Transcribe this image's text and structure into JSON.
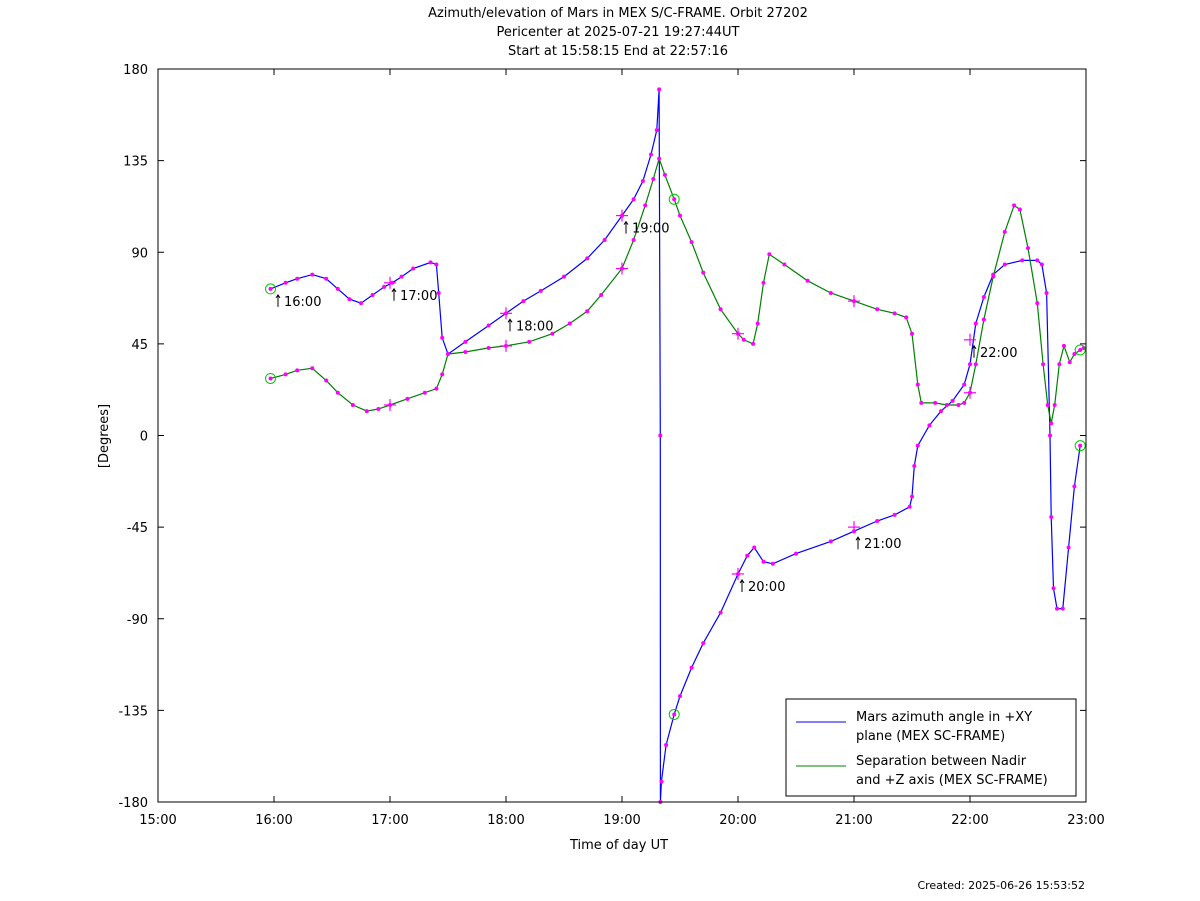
{
  "chart_data": {
    "type": "line",
    "title_lines": [
      "Azimuth/elevation of Mars in MEX S/C-FRAME.  Orbit 27202",
      "Pericenter at 2025-07-21 19:27:44UT",
      "Start at 15:58:15 End at 22:57:16"
    ],
    "xlabel": "Time of day UT",
    "ylabel": "[Degrees]",
    "created": "Created: 2025-06-26 15:53:52",
    "x_unit": "hours of day UT",
    "xlim": [
      15.0,
      23.0
    ],
    "ylim": [
      -180,
      180
    ],
    "x_ticks": [
      {
        "v": 15,
        "label": "15:00"
      },
      {
        "v": 16,
        "label": "16:00"
      },
      {
        "v": 17,
        "label": "17:00"
      },
      {
        "v": 18,
        "label": "18:00"
      },
      {
        "v": 19,
        "label": "19:00"
      },
      {
        "v": 20,
        "label": "20:00"
      },
      {
        "v": 21,
        "label": "21:00"
      },
      {
        "v": 22,
        "label": "22:00"
      },
      {
        "v": 23,
        "label": "23:00"
      }
    ],
    "y_ticks": [
      {
        "v": 180,
        "label": "180"
      },
      {
        "v": 135,
        "label": "135"
      },
      {
        "v": 90,
        "label": "90"
      },
      {
        "v": 45,
        "label": "45"
      },
      {
        "v": 0,
        "label": "0"
      },
      {
        "v": -45,
        "label": "-45"
      },
      {
        "v": -90,
        "label": "-90"
      },
      {
        "v": -135,
        "label": "-135"
      },
      {
        "v": -180,
        "label": "-180"
      }
    ],
    "grid": false,
    "legend_position": "bottom-right",
    "series": [
      {
        "name": "Mars azimuth angle in +XY plane (MEX SC-FRAME)",
        "legend_lines": [
          "Mars azimuth angle in +XY",
          "plane (MEX SC-FRAME)"
        ],
        "color": "#0000ff",
        "points": [
          [
            15.97,
            72
          ],
          [
            16.1,
            75
          ],
          [
            16.2,
            77
          ],
          [
            16.33,
            79
          ],
          [
            16.45,
            77
          ],
          [
            16.55,
            72
          ],
          [
            16.65,
            67
          ],
          [
            16.75,
            65
          ],
          [
            16.85,
            69
          ],
          [
            16.95,
            73
          ],
          [
            17.02,
            75
          ],
          [
            17.1,
            78
          ],
          [
            17.2,
            82
          ],
          [
            17.35,
            85
          ],
          [
            17.4,
            84
          ],
          [
            17.42,
            70
          ],
          [
            17.45,
            48
          ],
          [
            17.5,
            40
          ],
          [
            17.65,
            46
          ],
          [
            17.85,
            54
          ],
          [
            18.0,
            60
          ],
          [
            18.15,
            66
          ],
          [
            18.3,
            71
          ],
          [
            18.5,
            78
          ],
          [
            18.7,
            87
          ],
          [
            18.85,
            96
          ],
          [
            19.0,
            108
          ],
          [
            19.1,
            116
          ],
          [
            19.18,
            125
          ],
          [
            19.25,
            138
          ],
          [
            19.3,
            150
          ],
          [
            19.32,
            170
          ],
          [
            19.33,
            0
          ],
          [
            19.331,
            -180
          ],
          [
            19.34,
            -170
          ],
          [
            19.38,
            -152
          ],
          [
            19.45,
            -137
          ],
          [
            19.5,
            -128
          ],
          [
            19.6,
            -114
          ],
          [
            19.7,
            -102
          ],
          [
            19.85,
            -87
          ],
          [
            20.0,
            -68
          ],
          [
            20.08,
            -59
          ],
          [
            20.14,
            -55
          ],
          [
            20.22,
            -62
          ],
          [
            20.3,
            -63
          ],
          [
            20.5,
            -58
          ],
          [
            20.8,
            -52
          ],
          [
            21.0,
            -47
          ],
          [
            21.2,
            -42
          ],
          [
            21.35,
            -39
          ],
          [
            21.48,
            -35
          ],
          [
            21.5,
            -30
          ],
          [
            21.52,
            -15
          ],
          [
            21.55,
            -5
          ],
          [
            21.65,
            5
          ],
          [
            21.75,
            12
          ],
          [
            21.85,
            17
          ],
          [
            21.95,
            25
          ],
          [
            22.0,
            35
          ],
          [
            22.05,
            55
          ],
          [
            22.12,
            68
          ],
          [
            22.2,
            79
          ],
          [
            22.3,
            84
          ],
          [
            22.45,
            86
          ],
          [
            22.58,
            86
          ],
          [
            22.62,
            84
          ],
          [
            22.66,
            70
          ],
          [
            22.69,
            0
          ],
          [
            22.7,
            -40
          ],
          [
            22.72,
            -75
          ],
          [
            22.75,
            -85
          ],
          [
            22.8,
            -85
          ],
          [
            22.85,
            -55
          ],
          [
            22.9,
            -25
          ],
          [
            22.95,
            -5
          ]
        ],
        "star_markers": [
          [
            17.0,
            75
          ],
          [
            18.0,
            60
          ],
          [
            19.0,
            108
          ],
          [
            20.0,
            -68
          ],
          [
            21.0,
            -45
          ],
          [
            22.0,
            47
          ]
        ],
        "circle_markers": [
          [
            15.97,
            72
          ],
          [
            19.45,
            -137
          ],
          [
            22.95,
            -5
          ]
        ],
        "hour_labels": [
          {
            "x": 16.0,
            "y": 72,
            "label": "16:00"
          },
          {
            "x": 17.0,
            "y": 75,
            "label": "17:00"
          },
          {
            "x": 18.0,
            "y": 60,
            "label": "18:00"
          },
          {
            "x": 19.0,
            "y": 108,
            "label": "19:00"
          },
          {
            "x": 20.0,
            "y": -68,
            "label": "20:00"
          },
          {
            "x": 21.0,
            "y": -47,
            "label": "21:00"
          },
          {
            "x": 22.0,
            "y": 47,
            "label": "22:00"
          }
        ]
      },
      {
        "name": "Separation between Nadir and +Z axis (MEX SC-FRAME)",
        "legend_lines": [
          "Separation between Nadir",
          "and +Z axis (MEX SC-FRAME)"
        ],
        "color": "#008000",
        "points": [
          [
            15.97,
            28
          ],
          [
            16.1,
            30
          ],
          [
            16.2,
            32
          ],
          [
            16.33,
            33
          ],
          [
            16.45,
            27
          ],
          [
            16.55,
            21
          ],
          [
            16.68,
            15
          ],
          [
            16.8,
            12
          ],
          [
            16.9,
            13
          ],
          [
            17.0,
            15
          ],
          [
            17.15,
            18
          ],
          [
            17.3,
            21
          ],
          [
            17.4,
            23
          ],
          [
            17.45,
            30
          ],
          [
            17.5,
            40
          ],
          [
            17.65,
            41
          ],
          [
            17.85,
            43
          ],
          [
            18.0,
            44
          ],
          [
            18.2,
            46
          ],
          [
            18.4,
            50
          ],
          [
            18.55,
            55
          ],
          [
            18.7,
            61
          ],
          [
            18.82,
            69
          ],
          [
            19.0,
            82
          ],
          [
            19.1,
            96
          ],
          [
            19.2,
            113
          ],
          [
            19.27,
            126
          ],
          [
            19.32,
            136
          ],
          [
            19.37,
            128
          ],
          [
            19.45,
            116
          ],
          [
            19.5,
            108
          ],
          [
            19.6,
            95
          ],
          [
            19.7,
            80
          ],
          [
            19.85,
            62
          ],
          [
            20.0,
            50
          ],
          [
            20.05,
            47
          ],
          [
            20.13,
            45
          ],
          [
            20.17,
            55
          ],
          [
            20.22,
            75
          ],
          [
            20.27,
            89
          ],
          [
            20.4,
            84
          ],
          [
            20.6,
            76
          ],
          [
            20.8,
            70
          ],
          [
            21.0,
            66
          ],
          [
            21.2,
            62
          ],
          [
            21.35,
            60
          ],
          [
            21.45,
            58
          ],
          [
            21.5,
            50
          ],
          [
            21.55,
            25
          ],
          [
            21.58,
            16
          ],
          [
            21.7,
            16
          ],
          [
            21.8,
            15
          ],
          [
            21.9,
            15
          ],
          [
            21.95,
            16
          ],
          [
            22.0,
            21
          ],
          [
            22.05,
            35
          ],
          [
            22.12,
            57
          ],
          [
            22.2,
            78
          ],
          [
            22.3,
            100
          ],
          [
            22.38,
            113
          ],
          [
            22.43,
            111
          ],
          [
            22.5,
            92
          ],
          [
            22.58,
            65
          ],
          [
            22.63,
            35
          ],
          [
            22.67,
            15
          ],
          [
            22.7,
            6
          ],
          [
            22.73,
            15
          ],
          [
            22.77,
            35
          ],
          [
            22.81,
            44
          ],
          [
            22.86,
            36
          ],
          [
            22.9,
            40
          ],
          [
            22.95,
            42
          ],
          [
            22.98,
            43
          ]
        ],
        "star_markers": [
          [
            17.0,
            15
          ],
          [
            18.0,
            44
          ],
          [
            19.0,
            82
          ],
          [
            20.0,
            50
          ],
          [
            21.0,
            66
          ],
          [
            22.0,
            21
          ]
        ],
        "circle_markers": [
          [
            15.97,
            28
          ],
          [
            19.45,
            116
          ],
          [
            22.95,
            42
          ]
        ]
      }
    ],
    "dot_marker_color": "#ff00ff",
    "circle_marker_color": "#00cc00"
  }
}
